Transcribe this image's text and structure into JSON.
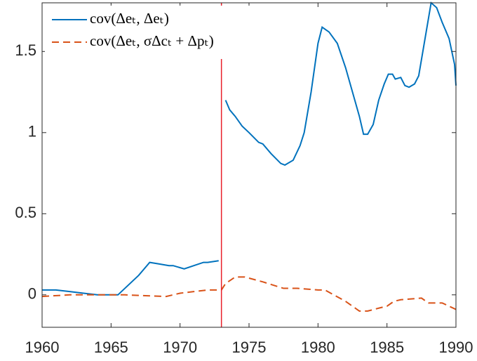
{
  "chart_data": {
    "type": "line",
    "xlim": [
      1960,
      1990
    ],
    "xticks": [
      1960,
      1965,
      1970,
      1975,
      1980,
      1985,
      1990
    ],
    "ylim": [
      -0.2,
      1.8
    ],
    "yticks": [
      0,
      0.5,
      1,
      1.5
    ],
    "vline": 1973,
    "vline_color": "#e8202a",
    "grid": false,
    "legend": "upper left",
    "series": [
      {
        "name": "cov(Δeₜ, Δeₜ)",
        "color": "#0072bd",
        "dash": false,
        "x": [
          1960,
          1961,
          1962,
          1963,
          1964,
          1965.5,
          1967,
          1967.8,
          1968.5,
          1969.2,
          1969.5,
          1970.3,
          1971,
          1971.7,
          1972,
          1972.8,
          1973,
          1973.3,
          1973.6,
          1974,
          1974.5,
          1975,
          1975.7,
          1976,
          1976.6,
          1977.3,
          1977.6,
          1978.2,
          1978.7,
          1979,
          1979.5,
          1980,
          1980.3,
          1980.8,
          1981.4,
          1982,
          1982.6,
          1983,
          1983.3,
          1983.6,
          1984,
          1984.4,
          1984.8,
          1985.1,
          1985.4,
          1985.6,
          1986,
          1986.3,
          1986.6,
          1987,
          1987.3,
          1987.6,
          1987.9,
          1988.2,
          1988.6,
          1989,
          1989.5,
          1989.9,
          1990
        ],
        "values": [
          0.03,
          0.03,
          0.02,
          0.01,
          0.0,
          0.0,
          0.12,
          0.2,
          0.19,
          0.18,
          0.18,
          0.16,
          0.18,
          0.2,
          0.2,
          0.21,
          null,
          1.2,
          1.14,
          1.1,
          1.04,
          1.0,
          0.94,
          0.93,
          0.87,
          0.81,
          0.8,
          0.83,
          0.92,
          1.0,
          1.25,
          1.55,
          1.65,
          1.62,
          1.55,
          1.4,
          1.22,
          1.1,
          0.99,
          0.99,
          1.05,
          1.2,
          1.3,
          1.36,
          1.36,
          1.33,
          1.34,
          1.29,
          1.28,
          1.3,
          1.35,
          1.5,
          1.65,
          1.8,
          1.77,
          1.68,
          1.58,
          1.42,
          1.29
        ]
      },
      {
        "name": "cov(Δeₜ, σΔcₜ + Δpₜ)",
        "color": "#d95319",
        "dash": true,
        "x": [
          1960,
          1962,
          1964,
          1966,
          1969,
          1970,
          1971,
          1972,
          1973,
          1973.3,
          1974,
          1974.7,
          1976,
          1977.5,
          1978.5,
          1980,
          1980.5,
          1982,
          1983,
          1983.6,
          1984.5,
          1985,
          1985.5,
          1986,
          1987.5,
          1988,
          1989,
          1990
        ],
        "values": [
          -0.01,
          0.0,
          0.0,
          0.0,
          -0.01,
          0.01,
          0.02,
          0.03,
          0.03,
          0.07,
          0.11,
          0.11,
          0.08,
          0.04,
          0.04,
          0.03,
          0.03,
          -0.04,
          -0.1,
          -0.1,
          -0.08,
          -0.07,
          -0.04,
          -0.03,
          -0.02,
          -0.05,
          -0.05,
          -0.09
        ]
      }
    ]
  }
}
